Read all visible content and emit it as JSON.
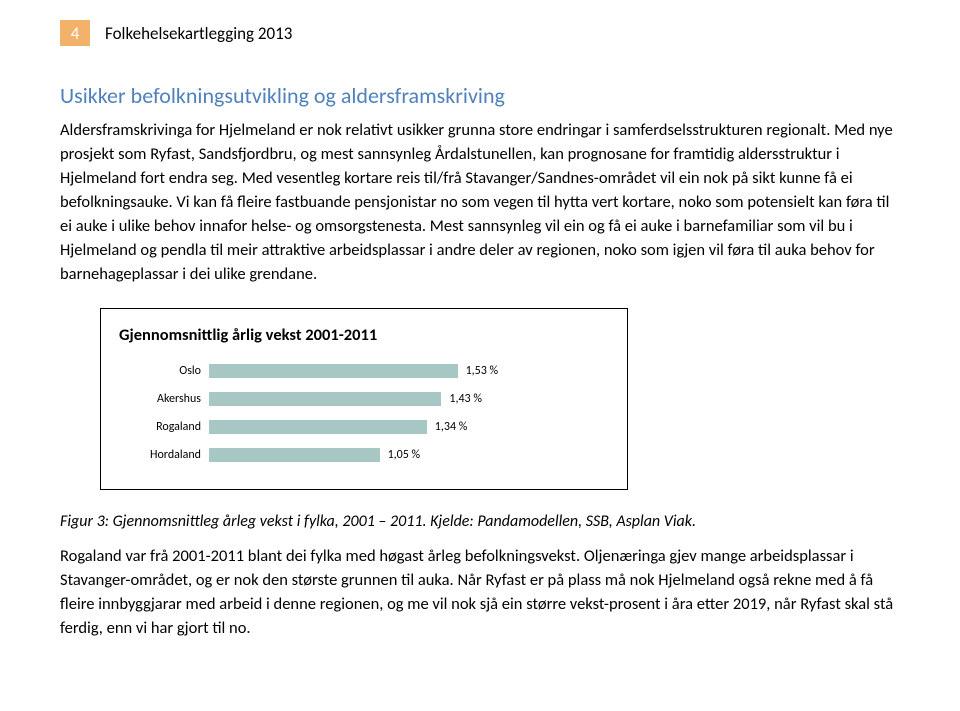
{
  "header": {
    "page_number": "4",
    "title": "Folkehelsekartlegging 2013"
  },
  "section": {
    "heading": "Usikker befolkningsutvikling og aldersframskriving",
    "para1": "Aldersframskrivinga for Hjelmeland er nok relativt usikker grunna store endringar i samferdselsstrukturen regionalt. Med nye prosjekt som Ryfast, Sandsfjordbru, og mest sannsynleg Årdalstunellen, kan prognosane for framtidig aldersstruktur i Hjelmeland fort endra seg. Med vesentleg kortare reis til/frå Stavanger/Sandnes-området vil ein nok på sikt kunne få ei befolkningsauke. Vi kan få fleire fastbuande pensjonistar no som vegen til hytta vert kortare, noko som potensielt kan føra til ei auke i ulike behov innafor helse- og omsorgstenesta. Mest sannsynleg vil ein og få ei auke i barnefamiliar som vil bu i Hjelmeland og pendla til meir attraktive arbeidsplassar i andre deler av regionen, noko som igjen vil føra til auka behov for barnehageplassar i dei ulike grendane."
  },
  "chart": {
    "title": "Gjennomsnittlig årlig vekst 2001-2011",
    "max_percent": 1.6,
    "bar_color": "#a7c7c5",
    "bars": [
      {
        "label": "Oslo",
        "value_label": "1,53 %",
        "percent": 1.53
      },
      {
        "label": "Akershus",
        "value_label": "1,43 %",
        "percent": 1.43
      },
      {
        "label": "Rogaland",
        "value_label": "1,34 %",
        "percent": 1.34
      },
      {
        "label": "Hordaland",
        "value_label": "1,05 %",
        "percent": 1.05
      }
    ]
  },
  "caption": "Figur 3: Gjennomsnittleg årleg vekst i fylka, 2001 – 2011. Kjelde: Pandamodellen, SSB, Asplan Viak.",
  "para2": "Rogaland var frå 2001-2011 blant dei fylka med høgast årleg befolkningsvekst. Oljenæringa gjev mange arbeidsplassar i Stavanger-området, og er nok den største grunnen til auka. Når Ryfast er på plass må nok Hjelmeland også rekne med å få fleire innbyggjarar med arbeid i denne regionen, og me vil nok sjå ein større vekst-prosent i åra etter 2019, når Ryfast skal stå ferdig, enn vi har gjort til no."
}
